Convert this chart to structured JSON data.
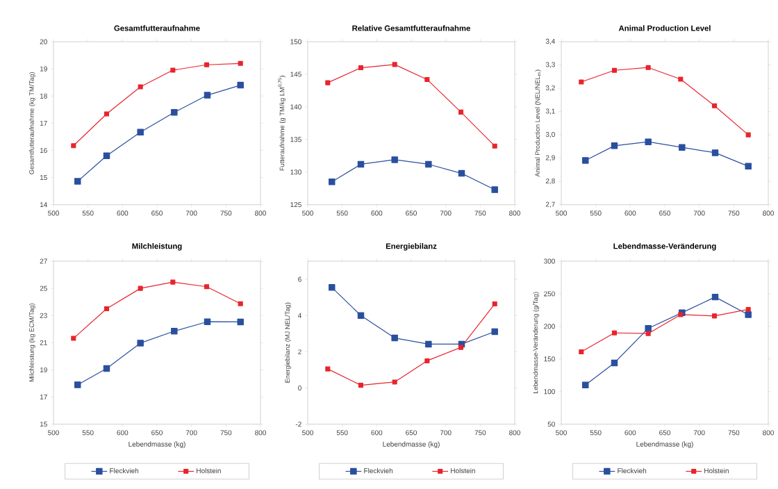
{
  "chart_data": [
    {
      "type": "line",
      "title": "Gesamtfutteraufnahme",
      "ylabel": "Gesamtfutteraufnahme (kg TM/Tag)",
      "xlim": [
        500,
        800
      ],
      "xticks": [
        500,
        550,
        600,
        650,
        700,
        750,
        800
      ],
      "ylim": [
        14,
        20
      ],
      "yticks": [
        14,
        15,
        16,
        17,
        18,
        19,
        20
      ],
      "marker": "square",
      "line_style": "solid",
      "grid": false,
      "legend": false,
      "series": [
        {
          "color": "#2a4f9e",
          "x": [
            535,
            577,
            626,
            675,
            723,
            771
          ],
          "values": [
            14.86,
            15.8,
            16.67,
            17.4,
            18.03,
            18.4
          ]
        },
        {
          "color": "#e8242c",
          "x": [
            529,
            577,
            626,
            673,
            722,
            771
          ],
          "values": [
            16.17,
            17.34,
            18.34,
            18.95,
            19.15,
            19.2
          ]
        }
      ]
    },
    {
      "type": "line",
      "title": "Relative Gesamtfutteraufnahme",
      "ylabel": "Futteraufnahme (g TM/kg LM$^{0,75}$)",
      "xlim": [
        500,
        800
      ],
      "xticks": [
        500,
        550,
        600,
        650,
        700,
        750,
        800
      ],
      "ylim": [
        125,
        150
      ],
      "yticks": [
        125,
        130,
        135,
        140,
        145,
        150
      ],
      "marker": "square",
      "line_style": "solid",
      "grid": false,
      "legend": false,
      "series": [
        {
          "color": "#2a4f9e",
          "x": [
            535,
            577,
            626,
            675,
            723,
            771
          ],
          "values": [
            128.5,
            131.2,
            131.9,
            131.2,
            129.8,
            127.3
          ]
        },
        {
          "color": "#e8242c",
          "x": [
            529,
            577,
            626,
            673,
            722,
            771
          ],
          "values": [
            143.7,
            146.0,
            146.5,
            144.2,
            139.2,
            134.0
          ]
        }
      ]
    },
    {
      "type": "line",
      "title": "Animal Production Level",
      "ylabel": "Animal Production Level (NEL/NEL$_{m}$)",
      "xlim": [
        500,
        800
      ],
      "xticks": [
        500,
        550,
        600,
        650,
        700,
        750,
        800
      ],
      "ylim": [
        2.7,
        3.4
      ],
      "yticks": [
        {
          "value": 2.7,
          "label": "2,7"
        },
        {
          "value": 2.8,
          "label": "2,8"
        },
        {
          "value": 2.9,
          "label": "2,9"
        },
        {
          "value": 3.0,
          "label": "3,0"
        },
        {
          "value": 3.1,
          "label": "3,1"
        },
        {
          "value": 3.2,
          "label": "3,2"
        },
        {
          "value": 3.3,
          "label": "3,3"
        },
        {
          "value": 3.4,
          "label": "3,4"
        }
      ],
      "marker": "square",
      "line_style": "solid",
      "grid": false,
      "legend": false,
      "series": [
        {
          "color": "#2a4f9e",
          "x": [
            535,
            577,
            626,
            675,
            723,
            771
          ],
          "values": [
            2.89,
            2.953,
            2.97,
            2.946,
            2.923,
            2.865
          ]
        },
        {
          "color": "#e8242c",
          "x": [
            529,
            577,
            626,
            673,
            722,
            771
          ],
          "values": [
            3.227,
            3.277,
            3.289,
            3.239,
            3.125,
            3.0
          ]
        }
      ]
    },
    {
      "type": "line",
      "title": "Milchleistung",
      "xlabel": "Lebendmasse (kg)",
      "ylabel": "Milchleistung (kg ECM/Tag)",
      "xlim": [
        500,
        800
      ],
      "xticks": [
        500,
        550,
        600,
        650,
        700,
        750,
        800
      ],
      "ylim": [
        15,
        27
      ],
      "yticks": [
        15,
        17,
        19,
        21,
        23,
        25,
        27
      ],
      "marker": "square",
      "line_style": "solid",
      "grid": false,
      "legend": "bottom",
      "series": [
        {
          "name": "Fleckvieh",
          "color": "#2a4f9e",
          "x": [
            535,
            577,
            626,
            675,
            723,
            771
          ],
          "values": [
            17.9,
            19.1,
            20.97,
            21.85,
            22.54,
            22.53
          ]
        },
        {
          "name": "Holstein",
          "color": "#e8242c",
          "x": [
            529,
            577,
            626,
            673,
            722,
            771
          ],
          "values": [
            21.32,
            23.5,
            25.0,
            25.46,
            25.12,
            23.87
          ]
        }
      ]
    },
    {
      "type": "line",
      "title": "Energiebilanz",
      "xlabel": "Lebendmasse (kg)",
      "ylabel": "Energiebilanz (MJ NEL/Tag)",
      "xlim": [
        500,
        800
      ],
      "xticks": [
        500,
        550,
        600,
        650,
        700,
        750,
        800
      ],
      "ylim": [
        -2,
        7
      ],
      "yticks": [
        -2,
        0,
        2,
        4,
        6
      ],
      "marker": "square",
      "line_style": "solid",
      "grid": false,
      "legend": "bottom",
      "series": [
        {
          "name": "Fleckvieh",
          "color": "#2a4f9e",
          "x": [
            535,
            577,
            626,
            675,
            723,
            771
          ],
          "values": [
            5.55,
            4.0,
            2.76,
            2.42,
            2.42,
            3.11
          ]
        },
        {
          "name": "Holstein",
          "color": "#e8242c",
          "x": [
            529,
            577,
            626,
            673,
            722,
            771
          ],
          "values": [
            1.05,
            0.15,
            0.33,
            1.5,
            2.24,
            4.64
          ]
        }
      ]
    },
    {
      "type": "line",
      "title": "Lebendmasse-Veränderung",
      "xlabel": "Lebendmasse (kg)",
      "ylabel": "Lebendmasse-Veränderung (g/Tag)",
      "xlim": [
        500,
        800
      ],
      "xticks": [
        500,
        550,
        600,
        650,
        700,
        750,
        800
      ],
      "ylim": [
        50,
        300
      ],
      "yticks": [
        50,
        100,
        150,
        200,
        250,
        300
      ],
      "marker": "square",
      "line_style": "solid",
      "grid": false,
      "legend": "bottom",
      "series": [
        {
          "name": "Fleckvieh",
          "color": "#2a4f9e",
          "x": [
            535,
            577,
            626,
            675,
            723,
            771
          ],
          "values": [
            110,
            144,
            197,
            221,
            245,
            218
          ]
        },
        {
          "name": "Holstein",
          "color": "#e8242c",
          "x": [
            529,
            577,
            626,
            673,
            722,
            771
          ],
          "values": [
            161,
            190,
            189,
            218,
            216,
            226
          ]
        }
      ]
    }
  ]
}
